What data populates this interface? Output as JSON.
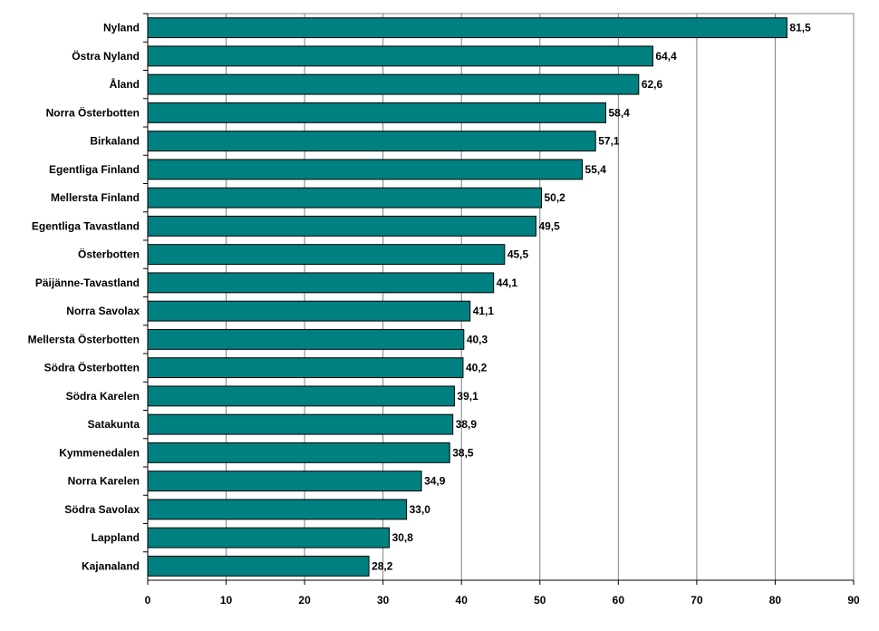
{
  "chart_data": {
    "type": "bar",
    "orientation": "horizontal",
    "title": "",
    "xlabel": "",
    "ylabel": "",
    "categories": [
      "Nyland",
      "Östra Nyland",
      "Åland",
      "Norra Österbotten",
      "Birkaland",
      "Egentliga Finland",
      "Mellersta Finland",
      "Egentliga Tavastland",
      "Österbotten",
      "Päijänne-Tavastland",
      "Norra Savolax",
      "Mellersta Österbotten",
      "Södra Österbotten",
      "Södra Karelen",
      "Satakunta",
      "Kymmenedalen",
      "Norra Karelen",
      "Södra Savolax",
      "Lappland",
      "Kajanaland"
    ],
    "values": [
      81.5,
      64.4,
      62.6,
      58.4,
      57.1,
      55.4,
      50.2,
      49.5,
      45.5,
      44.1,
      41.1,
      40.3,
      40.2,
      39.1,
      38.9,
      38.5,
      34.9,
      33.0,
      30.8,
      28.2
    ],
    "value_labels": [
      "81,5",
      "64,4",
      "62,6",
      "58,4",
      "57,1",
      "55,4",
      "50,2",
      "49,5",
      "45,5",
      "44,1",
      "41,1",
      "40,3",
      "40,2",
      "39,1",
      "38,9",
      "38,5",
      "34,9",
      "33,0",
      "30,8",
      "28,2"
    ],
    "xlim": [
      0,
      90
    ],
    "xticks": [
      "0",
      "10",
      "20",
      "30",
      "40",
      "50",
      "60",
      "70",
      "80",
      "90"
    ],
    "grid": true,
    "bar_color": "#008080"
  }
}
